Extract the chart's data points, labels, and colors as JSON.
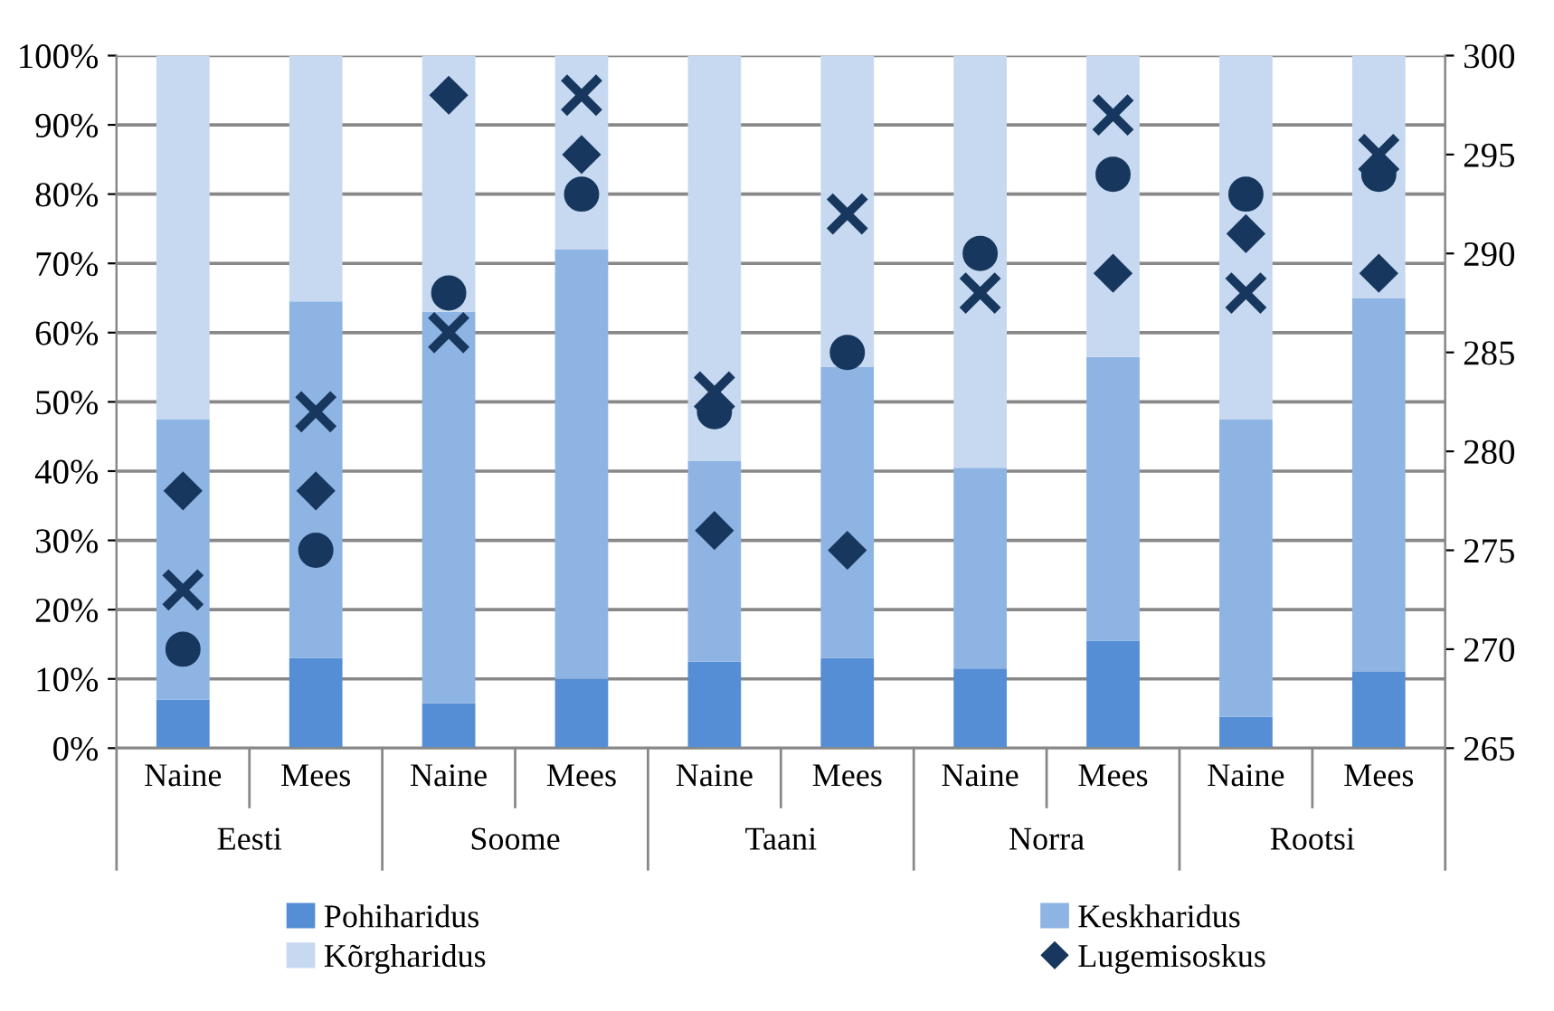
{
  "chart_data": {
    "type": "bar",
    "stacked": true,
    "categories": [
      "Naine",
      "Mees",
      "Naine",
      "Mees",
      "Naine",
      "Mees",
      "Naine",
      "Mees",
      "Naine",
      "Mees"
    ],
    "annotations": [
      "Eesti",
      "Soome",
      "Taani",
      "Norra",
      "Rootsi"
    ],
    "series": [
      {
        "name": "Pohiharidus",
        "color": "#558ed5",
        "values": [
          7,
          13,
          6.5,
          10,
          12.5,
          13,
          11.5,
          15.5,
          4.5,
          11
        ]
      },
      {
        "name": "Keskharidus",
        "color": "#8eb4e3",
        "values": [
          40.5,
          51.5,
          56.5,
          62,
          29,
          42,
          29,
          41,
          43,
          54
        ]
      },
      {
        "name": "Kõrgharidus",
        "color": "#c6d9f1",
        "values": [
          52.5,
          35.5,
          37,
          28,
          58.5,
          45,
          59.5,
          43.5,
          52.5,
          35
        ]
      },
      {
        "name": "Lugemisoskus",
        "type": "scatter",
        "axis": "y2",
        "marker": "diamond",
        "color": "#17375e",
        "values": [
          278,
          278,
          298,
          295,
          276,
          275,
          null,
          289,
          291,
          289
        ]
      },
      {
        "type": "scatter",
        "axis": "y2",
        "marker": "cross",
        "color": "#17375e",
        "values": [
          273,
          282,
          286,
          298,
          283,
          292,
          288,
          297,
          288,
          295
        ]
      },
      {
        "type": "scatter",
        "axis": "y2",
        "marker": "circle",
        "color": "#17375e",
        "values": [
          270,
          275,
          288,
          293,
          282,
          285,
          290,
          294,
          293,
          294
        ]
      }
    ],
    "ylim": [
      0,
      100
    ],
    "yticks": [
      {
        "value": 0,
        "label": "0%"
      },
      {
        "value": 10,
        "label": "10%"
      },
      {
        "value": 20,
        "label": "20%"
      },
      {
        "value": 30,
        "label": "30%"
      },
      {
        "value": 40,
        "label": "40%"
      },
      {
        "value": 50,
        "label": "50%"
      },
      {
        "value": 60,
        "label": "60%"
      },
      {
        "value": 70,
        "label": "70%"
      },
      {
        "value": 80,
        "label": "80%"
      },
      {
        "value": 90,
        "label": "90%"
      },
      {
        "value": 100,
        "label": "100%"
      }
    ],
    "y2lim": [
      265,
      300
    ],
    "y2ticks": [
      265,
      270,
      275,
      280,
      285,
      290,
      295,
      300
    ],
    "grid": "y",
    "legend": "bottom"
  }
}
